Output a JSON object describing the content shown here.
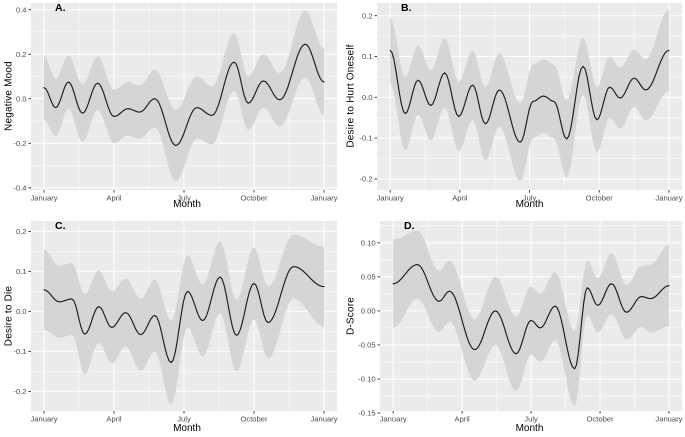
{
  "style": {
    "background": "#ffffff",
    "panel_bg": "#ebebeb",
    "grid_major_color": "#ffffff",
    "grid_minor_color": "#ffffff",
    "line_color": "#1c1c1c",
    "ribbon_color": "#d5d5d5",
    "tick_mark_color": "#333333",
    "tick_label_color": "#4d4d4d",
    "axis_title_color": "#000000"
  },
  "chart_data": [
    {
      "type": "line",
      "label": "A.",
      "ylabel": "Negative Mood",
      "xlabel": "Month",
      "legend": "none",
      "grid": true,
      "xlim": [
        0,
        12
      ],
      "ylim": [
        -0.41,
        0.43
      ],
      "x_ticks": {
        "values": [
          0,
          3,
          6,
          9,
          12
        ],
        "labels": [
          "January",
          "April",
          "July",
          "October",
          "January"
        ]
      },
      "x_minor": [
        1.5,
        4.5,
        7.5,
        10.5
      ],
      "y_ticks": {
        "values": [
          0.4,
          0.2,
          0.0,
          -0.2,
          -0.4
        ],
        "labels": [
          "0.4",
          "0.2",
          "0.0",
          "-0.2",
          "-0.4"
        ]
      },
      "y_minor": [
        0.3,
        0.1,
        -0.1,
        -0.3
      ],
      "series": [
        {
          "name": "smoothed mean with confidence ribbon",
          "x": [
            0,
            0.5,
            1.05,
            1.65,
            2.3,
            3.0,
            3.6,
            4.1,
            4.75,
            5.65,
            6.55,
            7.2,
            8.15,
            8.75,
            9.4,
            10.1,
            11.2,
            12
          ],
          "y": [
            0.05,
            -0.04,
            0.075,
            -0.065,
            0.07,
            -0.08,
            -0.045,
            -0.06,
            0.0,
            -0.21,
            -0.04,
            -0.075,
            0.165,
            -0.02,
            0.08,
            -0.005,
            0.245,
            0.075
          ],
          "ci_halfwidth": [
            0.145,
            0.13,
            0.12,
            0.13,
            0.12,
            0.12,
            0.12,
            0.12,
            0.13,
            0.16,
            0.14,
            0.13,
            0.13,
            0.12,
            0.12,
            0.12,
            0.15,
            0.15
          ]
        }
      ]
    },
    {
      "type": "line",
      "label": "B.",
      "ylabel": "Desire to Hurt Oneself",
      "xlabel": "Month",
      "legend": "none",
      "grid": true,
      "xlim": [
        0,
        12
      ],
      "ylim": [
        -0.227,
        0.231
      ],
      "x_ticks": {
        "values": [
          0,
          3,
          6,
          9,
          12
        ],
        "labels": [
          "January",
          "April",
          "July",
          "October",
          "January"
        ]
      },
      "x_minor": [
        1.5,
        4.5,
        7.5,
        10.5
      ],
      "y_ticks": {
        "values": [
          0.2,
          0.1,
          0.0,
          -0.1,
          -0.2
        ],
        "labels": [
          "0.2",
          "0.1",
          "0.0",
          "-0.1",
          "-0.2"
        ]
      },
      "y_minor": [
        0.15,
        0.05,
        -0.05,
        -0.15
      ],
      "series": [
        {
          "name": "smoothed mean with confidence ribbon",
          "x": [
            0,
            0.65,
            1.2,
            1.75,
            2.35,
            2.95,
            3.55,
            4.1,
            4.7,
            5.6,
            6.15,
            6.6,
            7.05,
            7.6,
            8.3,
            8.9,
            9.45,
            9.9,
            10.5,
            11.0,
            12
          ],
          "y": [
            0.115,
            -0.04,
            0.042,
            -0.02,
            0.06,
            -0.047,
            0.03,
            -0.065,
            0.018,
            -0.11,
            -0.01,
            0.003,
            -0.01,
            -0.102,
            0.076,
            -0.055,
            0.025,
            -0.002,
            0.047,
            0.018,
            0.115
          ],
          "ci_halfwidth": [
            0.08,
            0.09,
            0.085,
            0.085,
            0.085,
            0.085,
            0.085,
            0.09,
            0.09,
            0.095,
            0.09,
            0.09,
            0.09,
            0.095,
            0.07,
            0.08,
            0.075,
            0.075,
            0.07,
            0.075,
            0.1
          ]
        }
      ]
    },
    {
      "type": "line",
      "label": "C.",
      "ylabel": "Desire to Die",
      "xlabel": "Month",
      "legend": "none",
      "grid": true,
      "xlim": [
        0,
        12
      ],
      "ylim": [
        -0.249,
        0.226
      ],
      "x_ticks": {
        "values": [
          0,
          3,
          6,
          9,
          12
        ],
        "labels": [
          "January",
          "April",
          "July",
          "October",
          "January"
        ]
      },
      "x_minor": [
        1.5,
        4.5,
        7.5,
        10.5
      ],
      "y_ticks": {
        "values": [
          0.2,
          0.1,
          0.0,
          -0.1,
          -0.2
        ],
        "labels": [
          "0.2",
          "0.1",
          "0.0",
          "-0.1",
          "-0.2"
        ]
      },
      "y_minor": [
        0.15,
        0.05,
        -0.05,
        -0.15
      ],
      "series": [
        {
          "name": "smoothed mean with confidence ribbon",
          "x": [
            0,
            0.65,
            1.2,
            1.75,
            2.35,
            2.9,
            3.5,
            4.15,
            4.75,
            5.45,
            6.15,
            6.8,
            7.55,
            8.25,
            9.0,
            9.6,
            10.7,
            12
          ],
          "y": [
            0.054,
            0.024,
            0.031,
            -0.057,
            0.012,
            -0.04,
            -0.003,
            -0.058,
            -0.01,
            -0.128,
            0.05,
            -0.023,
            0.086,
            -0.06,
            0.07,
            -0.028,
            0.112,
            0.062
          ],
          "ci_halfwidth": [
            0.1,
            0.09,
            0.09,
            0.1,
            0.09,
            0.09,
            0.085,
            0.09,
            0.09,
            0.105,
            0.09,
            0.09,
            0.09,
            0.09,
            0.09,
            0.09,
            0.08,
            0.1
          ]
        }
      ]
    },
    {
      "type": "line",
      "label": "D.",
      "ylabel": "D-Score",
      "xlabel": "Month",
      "legend": "none",
      "grid": true,
      "xlim": [
        0,
        12
      ],
      "ylim": [
        -0.147,
        0.132
      ],
      "x_ticks": {
        "values": [
          0,
          3,
          6,
          9,
          12
        ],
        "labels": [
          "January",
          "April",
          "July",
          "October",
          "January"
        ]
      },
      "x_minor": [
        1.5,
        4.5,
        7.5,
        10.5
      ],
      "y_ticks": {
        "values": [
          0.1,
          0.05,
          0.0,
          -0.05,
          -0.1,
          -0.15
        ],
        "labels": [
          "0.10",
          "0.05",
          "0.00",
          "-0.05",
          "-0.10",
          "-0.15"
        ]
      },
      "y_minor": [
        0.125,
        0.075,
        0.025,
        -0.025,
        -0.075,
        -0.125
      ],
      "series": [
        {
          "name": "smoothed mean with confidence ribbon",
          "x": [
            0,
            1.05,
            2.0,
            2.45,
            3.55,
            4.45,
            5.35,
            6.0,
            6.4,
            7.05,
            7.9,
            8.45,
            8.9,
            9.5,
            10.15,
            10.8,
            11.2,
            12
          ],
          "y": [
            0.04,
            0.068,
            0.014,
            0.029,
            -0.057,
            0.0,
            -0.063,
            -0.014,
            -0.025,
            0.007,
            -0.085,
            0.034,
            0.008,
            0.04,
            -0.002,
            0.021,
            0.018,
            0.037
          ],
          "ci_halfwidth": [
            0.065,
            0.05,
            0.045,
            0.045,
            0.045,
            0.05,
            0.055,
            0.05,
            0.05,
            0.05,
            0.055,
            0.04,
            0.04,
            0.045,
            0.04,
            0.045,
            0.05,
            0.06
          ]
        }
      ]
    }
  ]
}
